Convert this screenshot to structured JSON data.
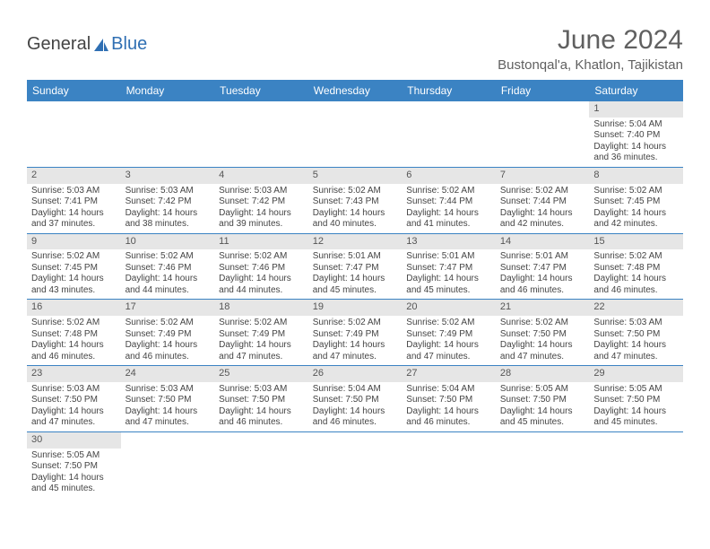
{
  "logo": {
    "part1": "General",
    "part2": "Blue"
  },
  "title": "June 2024",
  "location": "Bustonqal'a, Khatlon, Tajikistan",
  "colors": {
    "header_bg": "#3b83c3",
    "header_text": "#ffffff",
    "daynum_bg": "#e6e6e6",
    "text": "#444444",
    "title_text": "#606060",
    "row_divider": "#3b83c3"
  },
  "fonts": {
    "title_size_pt": 30,
    "location_size_pt": 15,
    "dow_size_pt": 12,
    "cell_size_pt": 10
  },
  "days_of_week": [
    "Sunday",
    "Monday",
    "Tuesday",
    "Wednesday",
    "Thursday",
    "Friday",
    "Saturday"
  ],
  "weeks": [
    [
      null,
      null,
      null,
      null,
      null,
      null,
      {
        "n": "1",
        "sunrise": "Sunrise: 5:04 AM",
        "sunset": "Sunset: 7:40 PM",
        "daylight": "Daylight: 14 hours and 36 minutes."
      }
    ],
    [
      {
        "n": "2",
        "sunrise": "Sunrise: 5:03 AM",
        "sunset": "Sunset: 7:41 PM",
        "daylight": "Daylight: 14 hours and 37 minutes."
      },
      {
        "n": "3",
        "sunrise": "Sunrise: 5:03 AM",
        "sunset": "Sunset: 7:42 PM",
        "daylight": "Daylight: 14 hours and 38 minutes."
      },
      {
        "n": "4",
        "sunrise": "Sunrise: 5:03 AM",
        "sunset": "Sunset: 7:42 PM",
        "daylight": "Daylight: 14 hours and 39 minutes."
      },
      {
        "n": "5",
        "sunrise": "Sunrise: 5:02 AM",
        "sunset": "Sunset: 7:43 PM",
        "daylight": "Daylight: 14 hours and 40 minutes."
      },
      {
        "n": "6",
        "sunrise": "Sunrise: 5:02 AM",
        "sunset": "Sunset: 7:44 PM",
        "daylight": "Daylight: 14 hours and 41 minutes."
      },
      {
        "n": "7",
        "sunrise": "Sunrise: 5:02 AM",
        "sunset": "Sunset: 7:44 PM",
        "daylight": "Daylight: 14 hours and 42 minutes."
      },
      {
        "n": "8",
        "sunrise": "Sunrise: 5:02 AM",
        "sunset": "Sunset: 7:45 PM",
        "daylight": "Daylight: 14 hours and 42 minutes."
      }
    ],
    [
      {
        "n": "9",
        "sunrise": "Sunrise: 5:02 AM",
        "sunset": "Sunset: 7:45 PM",
        "daylight": "Daylight: 14 hours and 43 minutes."
      },
      {
        "n": "10",
        "sunrise": "Sunrise: 5:02 AM",
        "sunset": "Sunset: 7:46 PM",
        "daylight": "Daylight: 14 hours and 44 minutes."
      },
      {
        "n": "11",
        "sunrise": "Sunrise: 5:02 AM",
        "sunset": "Sunset: 7:46 PM",
        "daylight": "Daylight: 14 hours and 44 minutes."
      },
      {
        "n": "12",
        "sunrise": "Sunrise: 5:01 AM",
        "sunset": "Sunset: 7:47 PM",
        "daylight": "Daylight: 14 hours and 45 minutes."
      },
      {
        "n": "13",
        "sunrise": "Sunrise: 5:01 AM",
        "sunset": "Sunset: 7:47 PM",
        "daylight": "Daylight: 14 hours and 45 minutes."
      },
      {
        "n": "14",
        "sunrise": "Sunrise: 5:01 AM",
        "sunset": "Sunset: 7:47 PM",
        "daylight": "Daylight: 14 hours and 46 minutes."
      },
      {
        "n": "15",
        "sunrise": "Sunrise: 5:02 AM",
        "sunset": "Sunset: 7:48 PM",
        "daylight": "Daylight: 14 hours and 46 minutes."
      }
    ],
    [
      {
        "n": "16",
        "sunrise": "Sunrise: 5:02 AM",
        "sunset": "Sunset: 7:48 PM",
        "daylight": "Daylight: 14 hours and 46 minutes."
      },
      {
        "n": "17",
        "sunrise": "Sunrise: 5:02 AM",
        "sunset": "Sunset: 7:49 PM",
        "daylight": "Daylight: 14 hours and 46 minutes."
      },
      {
        "n": "18",
        "sunrise": "Sunrise: 5:02 AM",
        "sunset": "Sunset: 7:49 PM",
        "daylight": "Daylight: 14 hours and 47 minutes."
      },
      {
        "n": "19",
        "sunrise": "Sunrise: 5:02 AM",
        "sunset": "Sunset: 7:49 PM",
        "daylight": "Daylight: 14 hours and 47 minutes."
      },
      {
        "n": "20",
        "sunrise": "Sunrise: 5:02 AM",
        "sunset": "Sunset: 7:49 PM",
        "daylight": "Daylight: 14 hours and 47 minutes."
      },
      {
        "n": "21",
        "sunrise": "Sunrise: 5:02 AM",
        "sunset": "Sunset: 7:50 PM",
        "daylight": "Daylight: 14 hours and 47 minutes."
      },
      {
        "n": "22",
        "sunrise": "Sunrise: 5:03 AM",
        "sunset": "Sunset: 7:50 PM",
        "daylight": "Daylight: 14 hours and 47 minutes."
      }
    ],
    [
      {
        "n": "23",
        "sunrise": "Sunrise: 5:03 AM",
        "sunset": "Sunset: 7:50 PM",
        "daylight": "Daylight: 14 hours and 47 minutes."
      },
      {
        "n": "24",
        "sunrise": "Sunrise: 5:03 AM",
        "sunset": "Sunset: 7:50 PM",
        "daylight": "Daylight: 14 hours and 47 minutes."
      },
      {
        "n": "25",
        "sunrise": "Sunrise: 5:03 AM",
        "sunset": "Sunset: 7:50 PM",
        "daylight": "Daylight: 14 hours and 46 minutes."
      },
      {
        "n": "26",
        "sunrise": "Sunrise: 5:04 AM",
        "sunset": "Sunset: 7:50 PM",
        "daylight": "Daylight: 14 hours and 46 minutes."
      },
      {
        "n": "27",
        "sunrise": "Sunrise: 5:04 AM",
        "sunset": "Sunset: 7:50 PM",
        "daylight": "Daylight: 14 hours and 46 minutes."
      },
      {
        "n": "28",
        "sunrise": "Sunrise: 5:05 AM",
        "sunset": "Sunset: 7:50 PM",
        "daylight": "Daylight: 14 hours and 45 minutes."
      },
      {
        "n": "29",
        "sunrise": "Sunrise: 5:05 AM",
        "sunset": "Sunset: 7:50 PM",
        "daylight": "Daylight: 14 hours and 45 minutes."
      }
    ],
    [
      {
        "n": "30",
        "sunrise": "Sunrise: 5:05 AM",
        "sunset": "Sunset: 7:50 PM",
        "daylight": "Daylight: 14 hours and 45 minutes."
      },
      null,
      null,
      null,
      null,
      null,
      null
    ]
  ]
}
